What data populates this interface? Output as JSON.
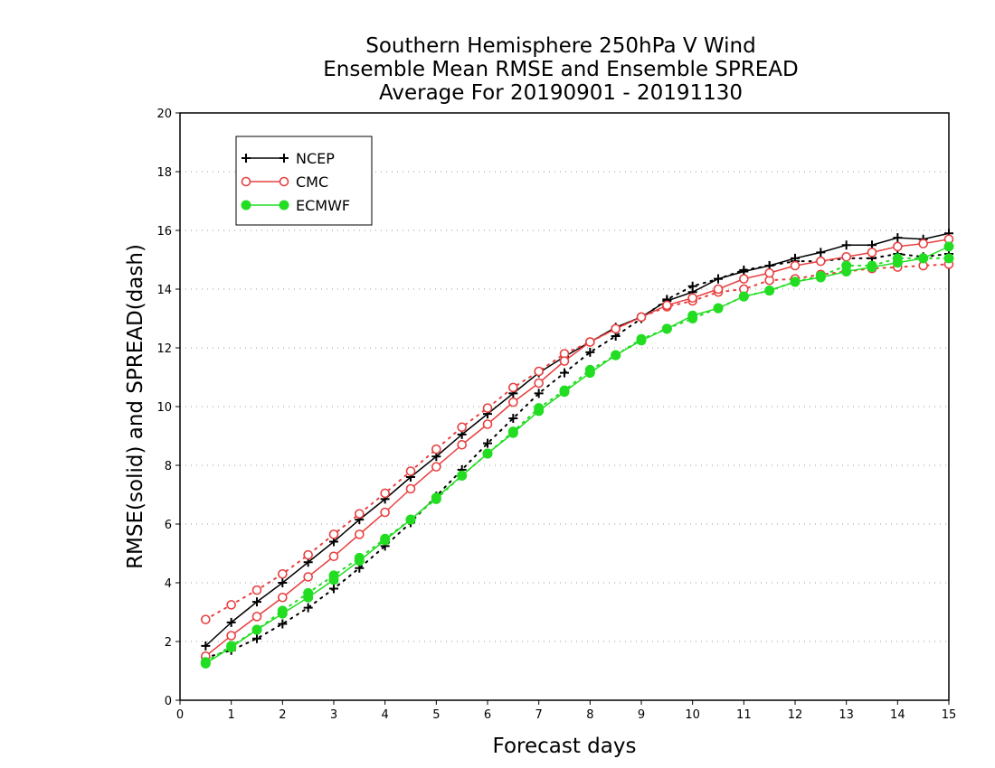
{
  "chart_data": {
    "type": "line",
    "title": [
      "Southern Hemisphere 250hPa V Wind",
      "Ensemble Mean RMSE and Ensemble SPREAD",
      "Average For 20190901 - 20191130"
    ],
    "xlabel": "Forecast days",
    "ylabel": "RMSE(solid) and SPREAD(dash)",
    "xlim": [
      0,
      15
    ],
    "ylim": [
      0,
      20
    ],
    "xticks": [
      0,
      1,
      2,
      3,
      4,
      5,
      6,
      7,
      8,
      9,
      10,
      11,
      12,
      13,
      14,
      15
    ],
    "yticks": [
      0,
      2,
      4,
      6,
      8,
      10,
      12,
      14,
      16,
      18,
      20
    ],
    "grid": "horizontal dotted",
    "legend_position": "top-left",
    "x": [
      0.5,
      1,
      1.5,
      2,
      2.5,
      3,
      3.5,
      4,
      4.5,
      5,
      5.5,
      6,
      6.5,
      7,
      7.5,
      8,
      8.5,
      9,
      9.5,
      10,
      10.5,
      11,
      11.5,
      12,
      12.5,
      13,
      13.5,
      14,
      14.5,
      15
    ],
    "series": [
      {
        "name": "NCEP",
        "color": "#000000",
        "marker": "plus",
        "rmse": [
          1.85,
          2.65,
          3.35,
          4.0,
          4.7,
          5.4,
          6.15,
          6.85,
          7.6,
          8.3,
          9.05,
          9.75,
          10.45,
          11.15,
          11.7,
          12.2,
          12.7,
          13.05,
          13.6,
          13.9,
          14.35,
          14.6,
          14.8,
          15.05,
          15.25,
          15.5,
          15.5,
          15.75,
          15.7,
          15.9
        ],
        "spread": [
          1.45,
          1.7,
          2.1,
          2.6,
          3.15,
          3.8,
          4.5,
          5.25,
          6.05,
          6.95,
          7.85,
          8.75,
          9.6,
          10.45,
          11.15,
          11.85,
          12.4,
          13.0,
          13.65,
          14.1,
          14.35,
          14.65,
          14.8,
          14.95,
          14.95,
          15.05,
          15.05,
          15.2,
          15.1,
          15.2
        ]
      },
      {
        "name": "CMC",
        "color": "#e84040",
        "marker": "open-circle",
        "rmse": [
          1.5,
          2.2,
          2.85,
          3.5,
          4.2,
          4.9,
          5.65,
          6.4,
          7.2,
          7.95,
          8.7,
          9.4,
          10.15,
          10.8,
          11.55,
          12.2,
          12.65,
          13.05,
          13.45,
          13.7,
          14.0,
          14.35,
          14.55,
          14.8,
          14.95,
          15.1,
          15.25,
          15.45,
          15.55,
          15.7
        ],
        "spread": [
          2.75,
          3.25,
          3.75,
          4.3,
          4.95,
          5.65,
          6.35,
          7.05,
          7.8,
          8.55,
          9.3,
          9.95,
          10.65,
          11.2,
          11.8,
          12.2,
          12.65,
          13.05,
          13.4,
          13.6,
          13.9,
          14.0,
          14.3,
          14.35,
          14.5,
          14.6,
          14.7,
          14.75,
          14.8,
          14.85
        ]
      },
      {
        "name": "ECMWF",
        "color": "#22dd22",
        "marker": "filled-circle",
        "rmse": [
          1.25,
          1.8,
          2.4,
          2.95,
          3.5,
          4.1,
          4.75,
          5.45,
          6.15,
          6.9,
          7.65,
          8.4,
          9.1,
          9.85,
          10.5,
          11.15,
          11.75,
          12.25,
          12.65,
          13.1,
          13.35,
          13.75,
          13.95,
          14.25,
          14.4,
          14.6,
          14.75,
          14.9,
          15.05,
          15.45
        ],
        "spread": [
          1.3,
          1.85,
          2.4,
          3.05,
          3.65,
          4.25,
          4.85,
          5.5,
          6.15,
          6.85,
          7.65,
          8.4,
          9.15,
          9.95,
          10.55,
          11.25,
          11.75,
          12.3,
          12.65,
          13.0,
          13.35,
          13.75,
          13.95,
          14.25,
          14.45,
          14.8,
          14.8,
          15.05,
          15.05,
          15.05
        ]
      }
    ]
  }
}
